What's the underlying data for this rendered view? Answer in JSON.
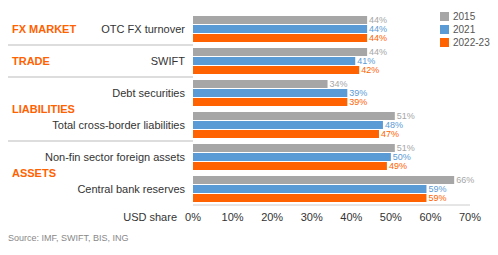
{
  "chart_data": {
    "type": "bar",
    "orientation": "horizontal",
    "grid": false,
    "data_labels": true,
    "legend": "top right",
    "x_label": "USD share",
    "source": "Source: IMF, SWIFT, BIS, ING",
    "categories": [
      "OTC FX turnover",
      "SWIFT",
      "Debt securities",
      "Total cross-border liabilities",
      "Non-fin sector foreign assets",
      "Central bank reserves"
    ],
    "groups": [
      {
        "label": "FX MARKET",
        "categories": [
          "OTC FX turnover"
        ]
      },
      {
        "label": "TRADE",
        "categories": [
          "SWIFT"
        ]
      },
      {
        "label": "LIABILITIES",
        "categories": [
          "Debt securities",
          "Total cross-border liabilities"
        ]
      },
      {
        "label": "ASSETS",
        "categories": [
          "Non-fin sector foreign assets",
          "Central bank reserves"
        ]
      }
    ],
    "series": [
      {
        "name": "2015",
        "color": "#a6a6a6",
        "values": [
          44,
          44,
          34,
          51,
          51,
          66
        ],
        "value_labels": [
          "44%",
          "44%",
          "34%",
          "51%",
          "51%",
          "66%"
        ]
      },
      {
        "name": "2021",
        "color": "#5b9bd5",
        "values": [
          44,
          41,
          39,
          48,
          50,
          59
        ],
        "value_labels": [
          "44%",
          "41%",
          "39%",
          "48%",
          "50%",
          "59%"
        ]
      },
      {
        "name": "2022-23",
        "color": "#ff6200",
        "values": [
          44,
          42,
          39,
          47,
          49,
          59
        ],
        "value_labels": [
          "44%",
          "42%",
          "39%",
          "47%",
          "49%",
          "59%"
        ]
      }
    ],
    "xlim": [
      0,
      70
    ],
    "xticks": [
      {
        "value": 0,
        "label": "0%"
      },
      {
        "value": 10,
        "label": "10%"
      },
      {
        "value": 20,
        "label": "20%"
      },
      {
        "value": 30,
        "label": "30%"
      },
      {
        "value": 40,
        "label": "40%"
      },
      {
        "value": 50,
        "label": "50%"
      },
      {
        "value": 60,
        "label": "60%"
      },
      {
        "value": 70,
        "label": "70%"
      }
    ]
  }
}
